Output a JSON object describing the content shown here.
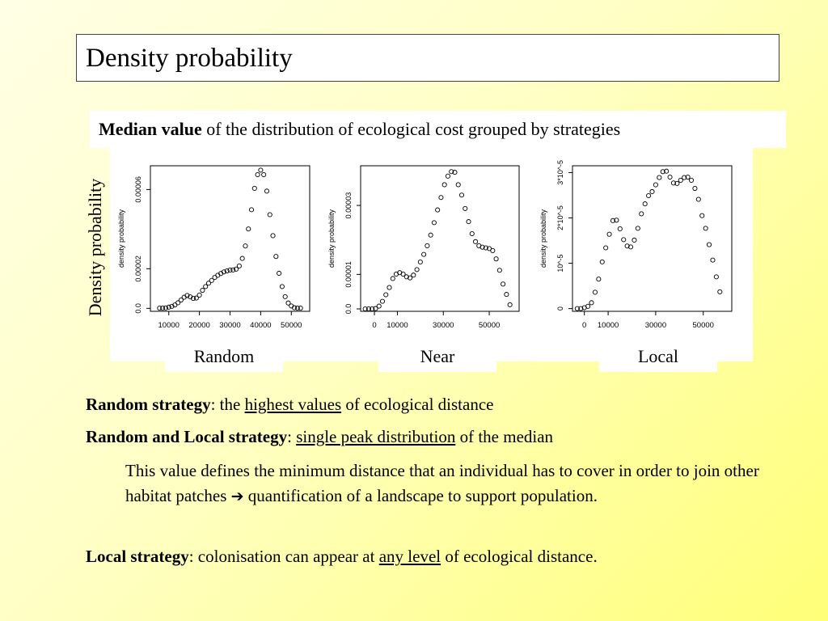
{
  "slide": {
    "title": "Density probability",
    "subtitle_bold": "Median value",
    "subtitle_rest": " of the distribution of ecological cost grouped by strategies",
    "outer_ylabel": "Density probability"
  },
  "bullets": {
    "b1_bold": "Random strategy",
    "b1_sep": ": the ",
    "b1_u": "highest values",
    "b1_rest": " of ecological distance",
    "b2_bold": "Random and Local strategy",
    "b2_sep": ": ",
    "b2_u": "single peak distribution",
    "b2_rest": " of the median",
    "b3_text_1": "This value defines the minimum distance that an individual has to cover in order to join other habitat patches ",
    "b3_arrow": "➔",
    "b3_text_2": " quantification of a landscape to support population.",
    "b4_bold": "Local strategy",
    "b4_sep": ": colonisation can appear at ",
    "b4_u": "any level",
    "b4_rest": " of ecological distance."
  },
  "chart_data": [
    {
      "type": "scatter",
      "label": "Random",
      "ylabel": "density probability",
      "xlim": [
        4000,
        56000
      ],
      "ylim": [
        -1.5e-06,
        7.2e-05
      ],
      "xticks": [
        10000,
        20000,
        30000,
        40000,
        50000
      ],
      "xtick_labels": [
        "10000",
        "20000",
        "30000",
        "40000",
        "50000"
      ],
      "yticks": [
        0,
        2e-05,
        6e-05
      ],
      "ytick_labels": [
        "0.0",
        "0.00002",
        "0.00006"
      ],
      "x": [
        7000,
        8000,
        9000,
        10000,
        11000,
        12000,
        13000,
        14000,
        15000,
        16000,
        17000,
        18000,
        19000,
        20000,
        21000,
        22000,
        23000,
        24000,
        25000,
        26000,
        27000,
        28000,
        29000,
        30000,
        31000,
        32000,
        33000,
        34000,
        35000,
        36000,
        37000,
        38000,
        39000,
        40000,
        41000,
        42000,
        43000,
        44000,
        45000,
        46000,
        47000,
        48000,
        49000,
        50000,
        51000,
        52000,
        53000
      ],
      "y": [
        1e-07,
        1e-07,
        2e-07,
        6e-07,
        1e-06,
        1.7e-06,
        2.8e-06,
        4.2e-06,
        5.6e-06,
        6.5e-06,
        5.8e-06,
        5e-06,
        5.2e-06,
        6.7e-06,
        9.1e-06,
        1.1e-05,
        1.27e-05,
        1.41e-05,
        1.56e-05,
        1.67e-05,
        1.76e-05,
        1.84e-05,
        1.89e-05,
        1.93e-05,
        1.94e-05,
        1.98e-05,
        2.14e-05,
        2.52e-05,
        3.15e-05,
        4.01e-05,
        4.98e-05,
        6.06e-05,
        6.75e-05,
        6.98e-05,
        6.75e-05,
        5.92e-05,
        4.73e-05,
        3.67e-05,
        2.62e-05,
        1.77e-05,
        1.1e-05,
        5.9e-06,
        2.7e-06,
        1.2e-06,
        3e-07,
        1e-07,
        1e-07
      ]
    },
    {
      "type": "scatter",
      "label": "Near",
      "ylabel": "density probability",
      "xlim": [
        -6000,
        63000
      ],
      "ylim": [
        -7e-07,
        4.15e-05
      ],
      "xticks": [
        0,
        10000,
        30000,
        50000
      ],
      "xtick_labels": [
        "0",
        "10000",
        "30000",
        "50000"
      ],
      "yticks": [
        0,
        1e-05,
        3e-05
      ],
      "ytick_labels": [
        "0.0",
        "0.00001",
        "0.00003"
      ],
      "x": [
        -4000,
        -2500,
        -1000,
        500,
        2000,
        3500,
        5000,
        6500,
        8000,
        9500,
        11000,
        12500,
        14000,
        15500,
        17000,
        18500,
        20000,
        21500,
        23000,
        24500,
        26000,
        27500,
        29000,
        30500,
        32000,
        33500,
        35000,
        36500,
        38000,
        39500,
        41000,
        42500,
        44000,
        45500,
        47000,
        48500,
        50000,
        51500,
        53000,
        54500,
        56000,
        57500,
        59000
      ],
      "y": [
        0,
        0,
        0,
        1e-07,
        8e-07,
        2.2e-06,
        4.1e-06,
        6.2e-06,
        8.8e-06,
        1.01e-05,
        1.05e-05,
        1.01e-05,
        9.3e-06,
        9e-06,
        9.8e-06,
        1.14e-05,
        1.36e-05,
        1.58e-05,
        1.83e-05,
        2.14e-05,
        2.5e-05,
        2.87e-05,
        3.23e-05,
        3.6e-05,
        3.85e-05,
        3.98e-05,
        3.96e-05,
        3.6e-05,
        3.3e-05,
        2.91e-05,
        2.53e-05,
        2.18e-05,
        1.95e-05,
        1.83e-05,
        1.79e-05,
        1.77e-05,
        1.75e-05,
        1.69e-05,
        1.45e-05,
        1.12e-05,
        7.2e-06,
        4.2e-06,
        1.2e-06
      ]
    },
    {
      "type": "scatter",
      "label": "Local",
      "ylabel": "density probability",
      "xlim": [
        -5000,
        62000
      ],
      "ylim": [
        -6e-07,
        3.15e-05
      ],
      "xticks": [
        0,
        10000,
        30000,
        50000
      ],
      "xtick_labels": [
        "0",
        "10000",
        "30000",
        "50000"
      ],
      "yticks": [
        0,
        1e-05,
        2e-05,
        3e-05
      ],
      "ytick_labels": [
        "0",
        "10^-5",
        "2*10^-5",
        "3*10^-5"
      ],
      "x": [
        -3000,
        -1500,
        0,
        1500,
        3000,
        4500,
        6000,
        7500,
        9000,
        10500,
        12000,
        13500,
        15000,
        16500,
        18000,
        19500,
        21000,
        22500,
        24000,
        25500,
        27000,
        28500,
        30000,
        31500,
        33000,
        34500,
        36000,
        37500,
        39000,
        40500,
        42000,
        43500,
        45000,
        46500,
        48000,
        49500,
        51000,
        52500,
        54000,
        55500,
        57000
      ],
      "y": [
        0,
        0,
        2e-07,
        5e-07,
        1.3e-06,
        3.6e-06,
        6.5e-06,
        1.03e-05,
        1.34e-05,
        1.64e-05,
        1.94e-05,
        1.95e-05,
        1.76e-05,
        1.52e-05,
        1.38e-05,
        1.36e-05,
        1.51e-05,
        1.77e-05,
        2.09e-05,
        2.31e-05,
        2.49e-05,
        2.58e-05,
        2.73e-05,
        2.89e-05,
        3.02e-05,
        3.03e-05,
        2.9e-05,
        2.77e-05,
        2.76e-05,
        2.83e-05,
        2.89e-05,
        2.9e-05,
        2.83e-05,
        2.65e-05,
        2.41e-05,
        2.05e-05,
        1.77e-05,
        1.41e-05,
        1.07e-05,
        7e-06,
        3.7e-06
      ]
    }
  ]
}
